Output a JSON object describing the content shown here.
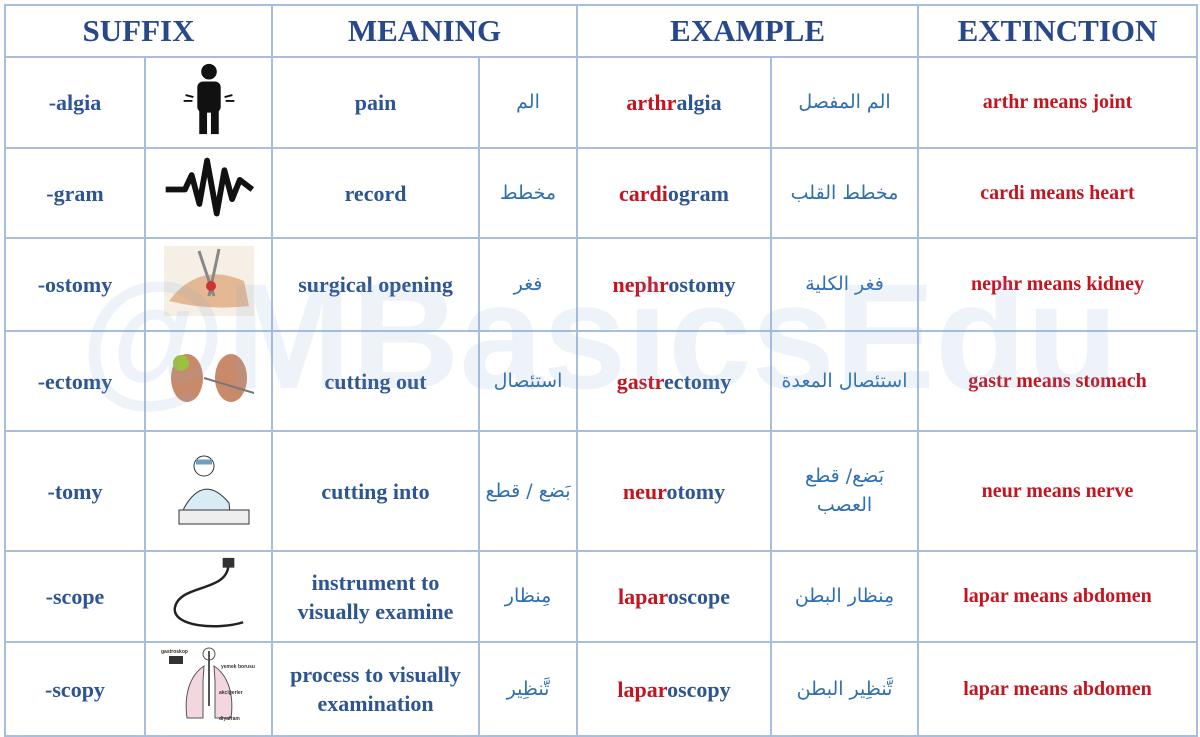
{
  "header": {
    "suffix": "SUFFIX",
    "meaning": "MEANING",
    "example": "EXAMPLE",
    "extinction": "EXTINCTION"
  },
  "watermark": "@MBasicsEdu",
  "rows": [
    {
      "suffix": "-algia",
      "meaning": "pain",
      "meaning_ar": "الم",
      "example_root": "arthr",
      "example_suffix": "algia",
      "example_ar": "الم المفصل",
      "extinction": "arthr means joint"
    },
    {
      "suffix": "-gram",
      "meaning": "record",
      "meaning_ar": "مخطط",
      "example_root": "cardi",
      "example_suffix": "ogram",
      "example_ar": "مخطط القلب",
      "extinction": "cardi means heart"
    },
    {
      "suffix": "-ostomy",
      "meaning": "surgical opening",
      "meaning_ar": "فغر",
      "example_root": "nephr",
      "example_suffix": "ostomy",
      "example_ar": "فغر الكلية",
      "extinction": "nephr means kidney"
    },
    {
      "suffix": "-ectomy",
      "meaning": "cutting out",
      "meaning_ar": "استئصال",
      "example_root": "gastr",
      "example_suffix": "ectomy",
      "example_ar": "استئصال المعدة",
      "extinction": "gastr means stomach"
    },
    {
      "suffix": "-tomy",
      "meaning": "cutting into",
      "meaning_ar": "بَضع / قطع",
      "example_root": "neur",
      "example_suffix": "otomy",
      "example_ar": "بَضع/ قطع العصب",
      "extinction": "neur means nerve"
    },
    {
      "suffix": "-scope",
      "meaning": "instrument to visually examine",
      "meaning_ar": "مِنظار",
      "example_root": "lapar",
      "example_suffix": "oscope",
      "example_ar": "مِنظار البطن",
      "extinction": "lapar means abdomen"
    },
    {
      "suffix": "-scopy",
      "meaning": "process to visually examination",
      "meaning_ar": "تَّنظِير",
      "example_root": "lapar",
      "example_suffix": "oscopy",
      "example_ar": "تَّنظِير البطن",
      "extinction": "lapar means abdomen"
    }
  ],
  "scopy_image_labels": [
    "gastroskop",
    "yemek borusu",
    "akciğerler",
    "diyafram"
  ]
}
